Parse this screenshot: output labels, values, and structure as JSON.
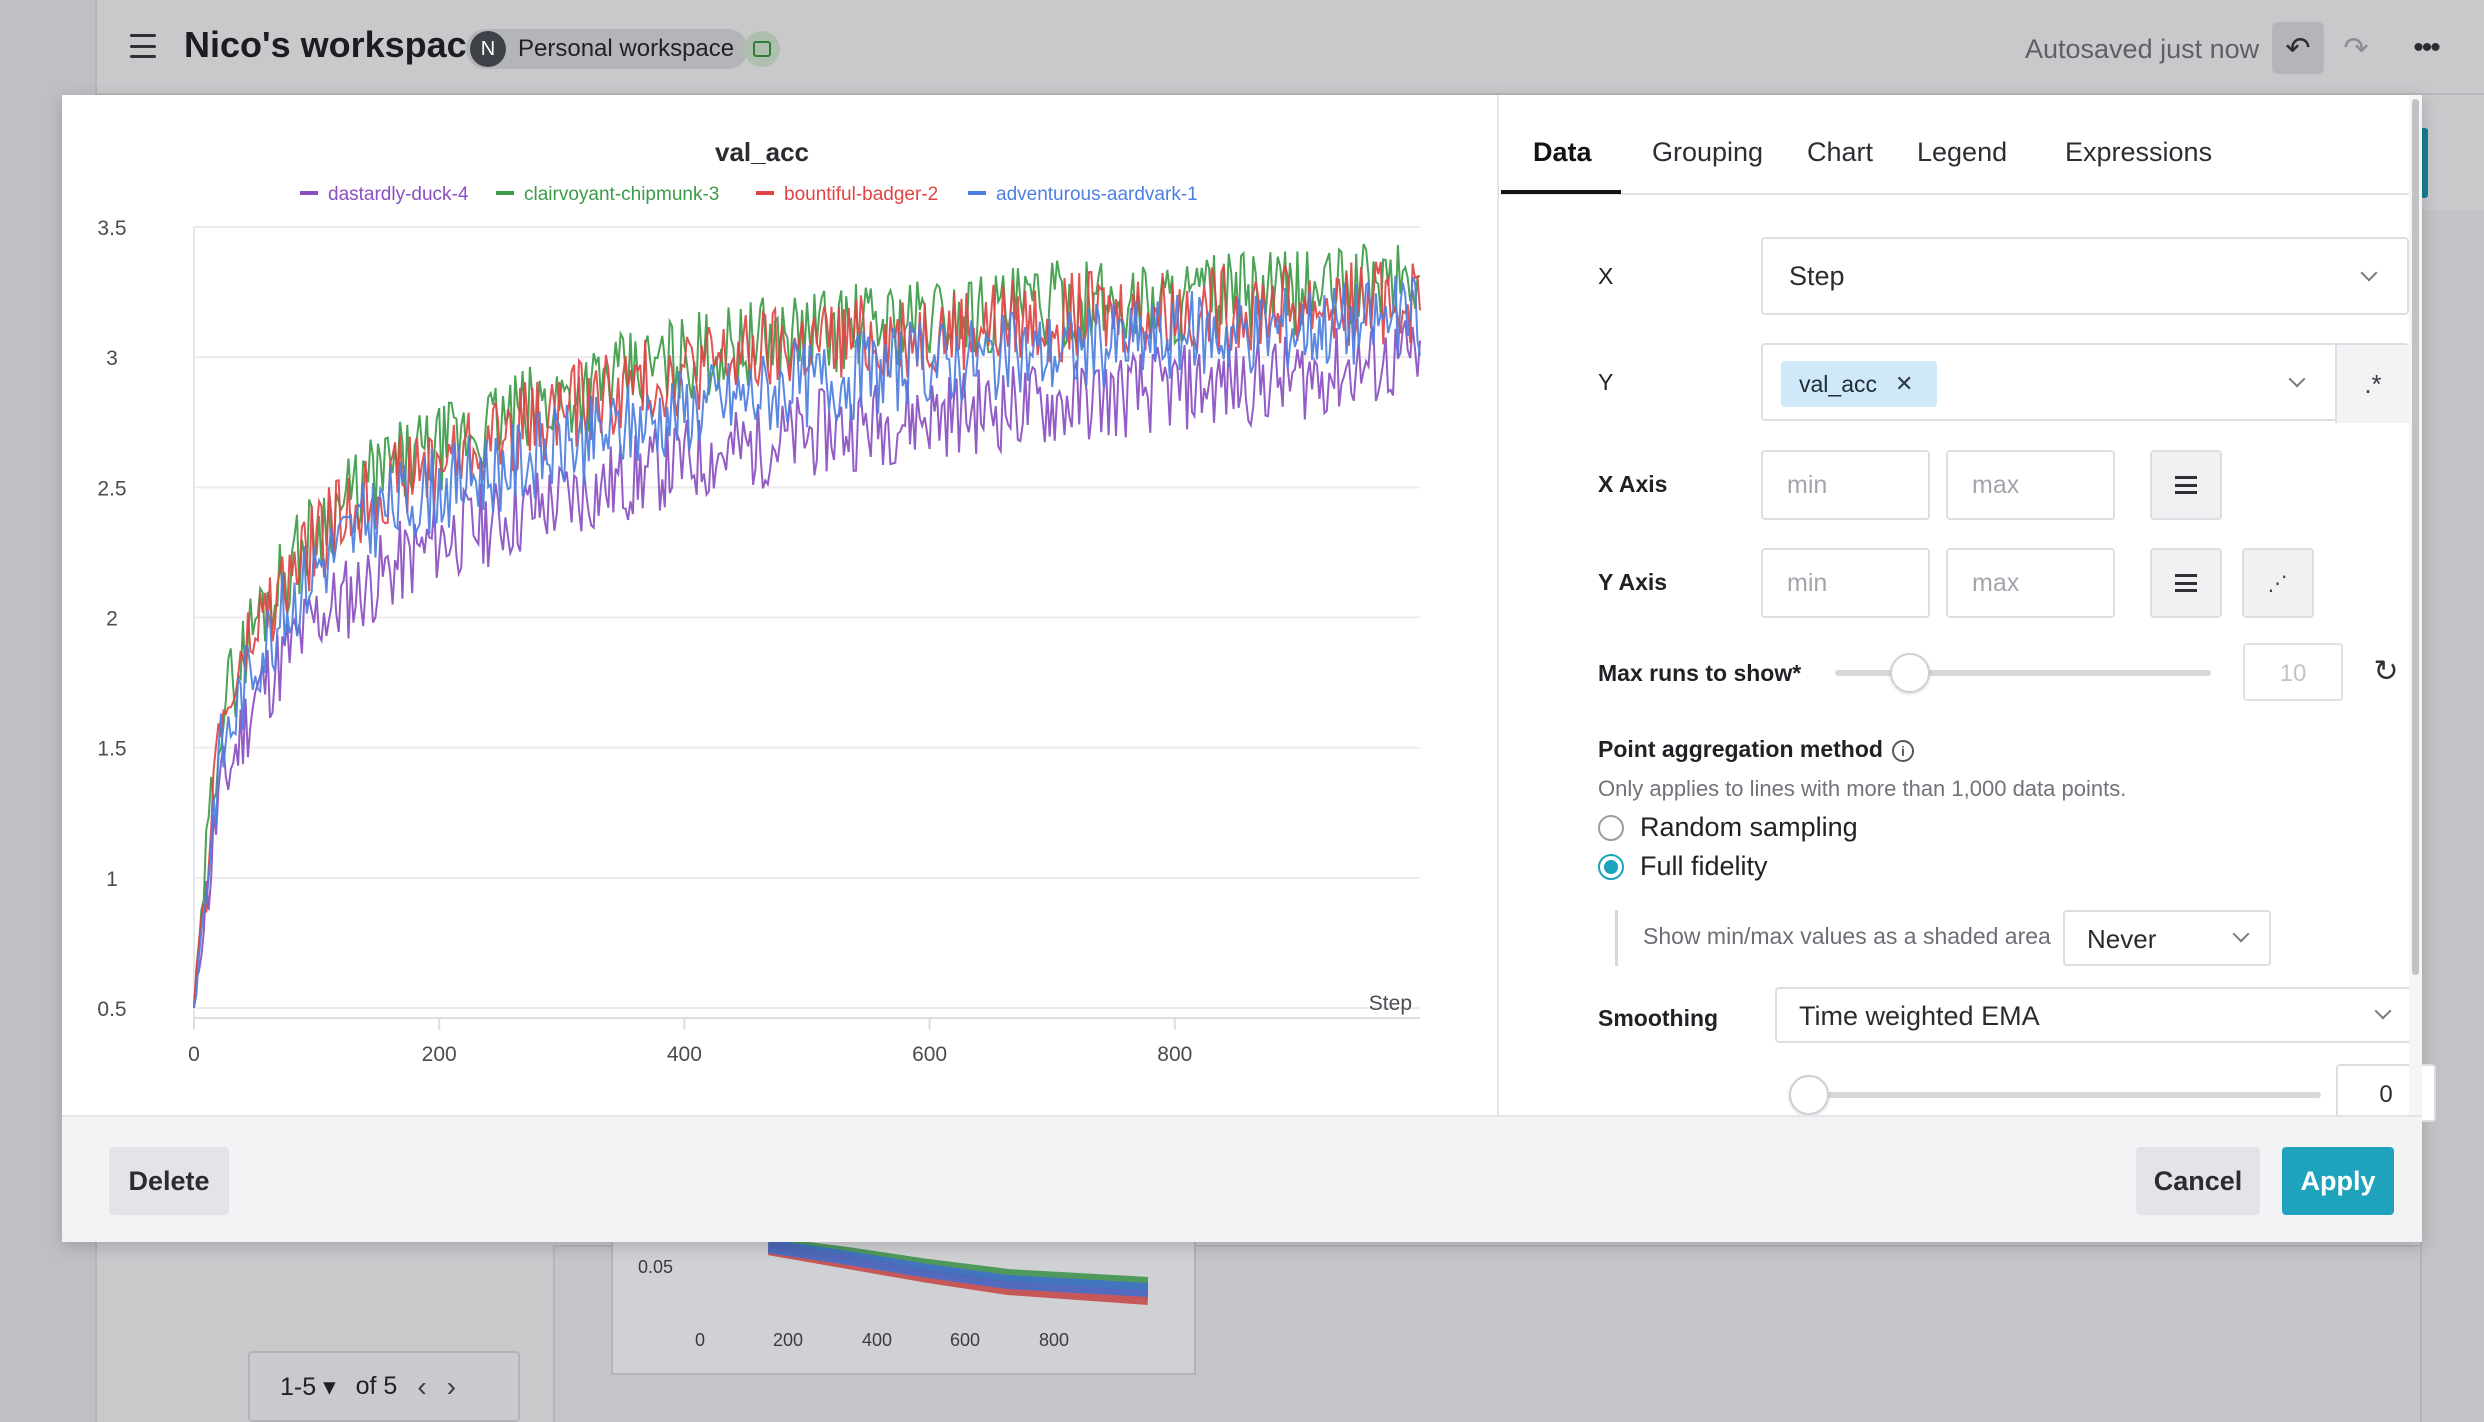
{
  "header": {
    "title": "Nico's workspace",
    "avatar_letter": "N",
    "workspace_type": "Personal workspace",
    "autosave_status": "Autosaved just now",
    "undo_icon": "undo-icon",
    "redo_icon": "redo-icon",
    "more_icon": "more-options-icon"
  },
  "background_panel": {
    "y_tick": "0.05",
    "x_ticks": [
      "0",
      "200",
      "400",
      "600",
      "800"
    ]
  },
  "pager": {
    "range": "1-5",
    "of_label": "of 5"
  },
  "chart_data": {
    "type": "line",
    "title": "val_acc",
    "xlabel": "Step",
    "ylabel": "",
    "xlim": [
      0,
      1000
    ],
    "ylim": [
      0.5,
      3.5
    ],
    "xticks": [
      0,
      200,
      400,
      600,
      800
    ],
    "yticks": [
      0.5,
      1,
      1.5,
      2,
      2.5,
      3,
      3.5
    ],
    "ytick_labels": [
      "0.5",
      "1",
      "1.5",
      "2",
      "2.5",
      "3",
      "3.5"
    ],
    "xtick_labels": [
      "0",
      "200",
      "400",
      "600",
      "800"
    ],
    "grid": true,
    "legend_position": "top",
    "x": [
      0,
      20,
      50,
      100,
      150,
      200,
      300,
      400,
      500,
      600,
      700,
      800,
      900,
      1000
    ],
    "series": [
      {
        "name": "dastardly-duck-4",
        "color": "#8a4fc0",
        "values": [
          0.5,
          1.3,
          1.7,
          2.0,
          2.15,
          2.3,
          2.45,
          2.6,
          2.7,
          2.78,
          2.82,
          2.88,
          2.92,
          3.0
        ]
      },
      {
        "name": "clairvoyant-chipmunk-3",
        "color": "#3c9b48",
        "values": [
          0.5,
          1.6,
          2.0,
          2.35,
          2.55,
          2.65,
          2.85,
          3.0,
          3.1,
          3.15,
          3.2,
          3.22,
          3.25,
          3.3
        ]
      },
      {
        "name": "bountiful-badger-2",
        "color": "#e04444",
        "values": [
          0.5,
          1.55,
          1.95,
          2.3,
          2.5,
          2.6,
          2.8,
          2.95,
          3.05,
          3.1,
          3.15,
          3.18,
          3.2,
          3.22
        ]
      },
      {
        "name": "adventurous-aardvark-1",
        "color": "#4d7fe0",
        "values": [
          0.5,
          1.45,
          1.85,
          2.2,
          2.4,
          2.5,
          2.65,
          2.8,
          2.9,
          2.98,
          3.02,
          3.08,
          3.12,
          3.15
        ]
      }
    ]
  },
  "tabs": [
    "Data",
    "Grouping",
    "Chart",
    "Legend",
    "Expressions"
  ],
  "settings": {
    "x_label": "X",
    "x_value": "Step",
    "y_label": "Y",
    "y_chip": "val_acc",
    "regex_label": ".*",
    "x_axis_label": "X Axis",
    "y_axis_label": "Y Axis",
    "min_placeholder": "min",
    "max_placeholder": "max",
    "max_runs_label": "Max runs to show*",
    "max_runs_value": "10",
    "max_runs_fraction": 0.2,
    "aggregation_label": "Point aggregation method",
    "aggregation_hint": "Only applies to lines with more than 1,000 data points.",
    "random_sampling": "Random sampling",
    "full_fidelity": "Full fidelity",
    "aggregation_selected": "Full fidelity",
    "shaded_label": "Show min/max values as a shaded area",
    "shaded_value": "Never",
    "smoothing_label": "Smoothing",
    "smoothing_value": "Time weighted EMA",
    "smoothing_amount": "0",
    "smoothing_fraction": 0
  },
  "footer": {
    "delete": "Delete",
    "cancel": "Cancel",
    "apply": "Apply"
  },
  "colors": {
    "accent": "#1fa3bc",
    "chip": "#cfe9f9"
  }
}
